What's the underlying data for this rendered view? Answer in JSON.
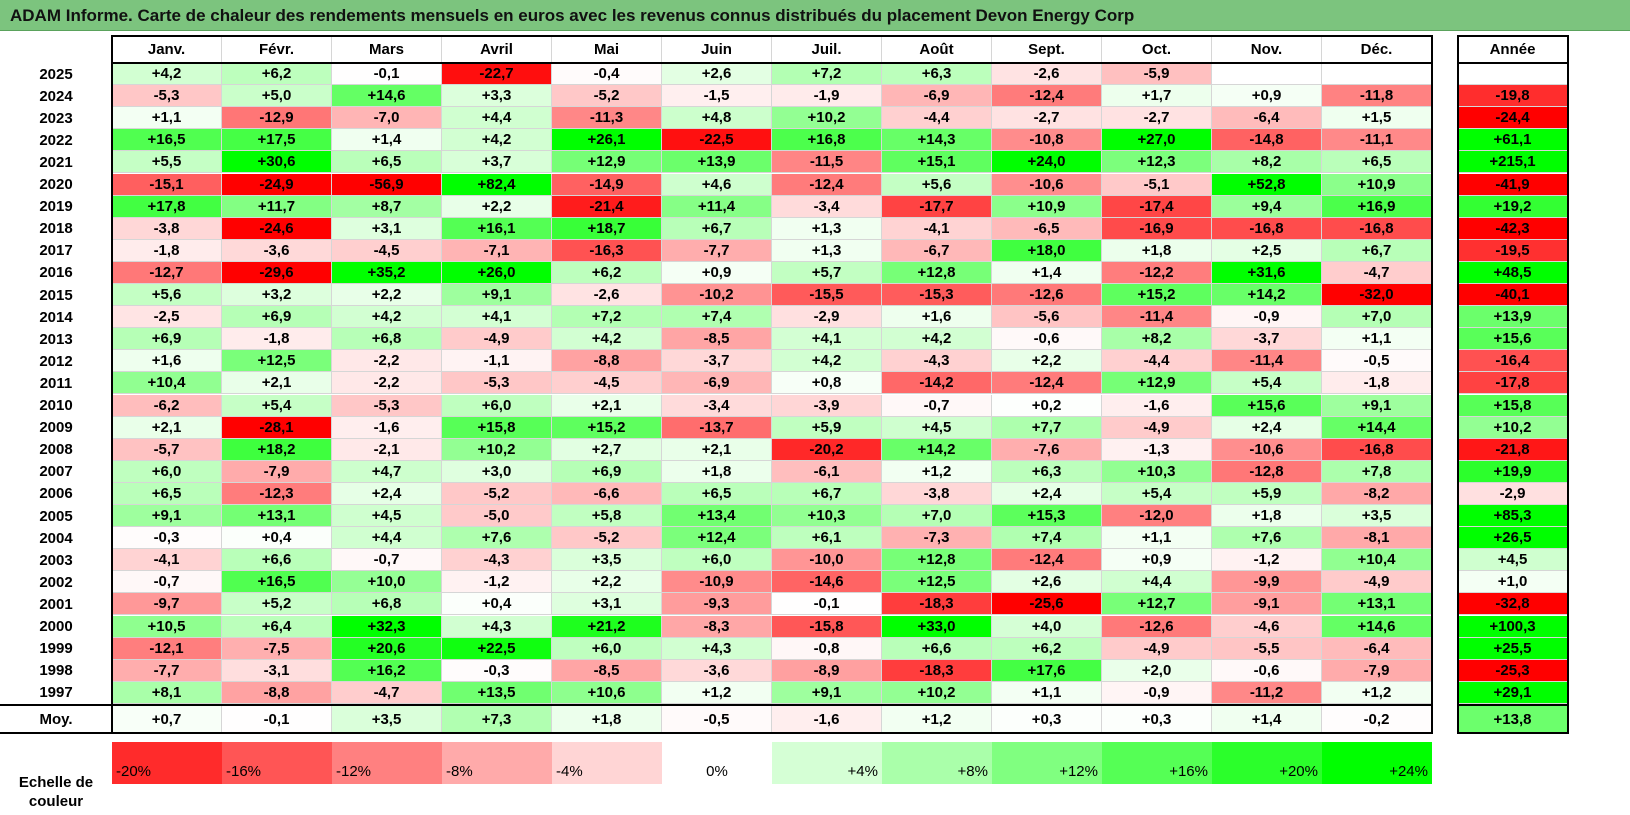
{
  "title": "ADAM Informe. Carte de chaleur des rendements mensuels en euros avec les revenus connus distribués du placement Devon Energy Corp",
  "chart_data": {
    "type": "heatmap",
    "title": "ADAM Informe. Carte de chaleur des rendements mensuels en euros avec les revenus connus distribués du placement Devon Energy Corp",
    "columns": [
      "Janv.",
      "Févr.",
      "Mars",
      "Avril",
      "Mai",
      "Juin",
      "Juil.",
      "Août",
      "Sept.",
      "Oct.",
      "Nov.",
      "Déc."
    ],
    "year_column": "Année",
    "rows": [
      {
        "year": "2025",
        "values": [
          4.2,
          6.2,
          -0.1,
          -22.7,
          -0.4,
          2.6,
          7.2,
          6.3,
          -2.6,
          -5.9,
          null,
          null
        ],
        "annual": null
      },
      {
        "year": "2024",
        "values": [
          -5.3,
          5.0,
          14.6,
          3.3,
          -5.2,
          -1.5,
          -1.9,
          -6.9,
          -12.4,
          1.7,
          0.9,
          -11.8
        ],
        "annual": -19.8
      },
      {
        "year": "2023",
        "values": [
          1.1,
          -12.9,
          -7.0,
          4.4,
          -11.3,
          4.8,
          10.2,
          -4.4,
          -2.7,
          -2.7,
          -6.4,
          1.5
        ],
        "annual": -24.4
      },
      {
        "year": "2022",
        "values": [
          16.5,
          17.5,
          1.4,
          4.2,
          26.1,
          -22.5,
          16.8,
          14.3,
          -10.8,
          27.0,
          -14.8,
          -11.1
        ],
        "annual": 61.1
      },
      {
        "year": "2021",
        "values": [
          5.5,
          30.6,
          6.5,
          3.7,
          12.9,
          13.9,
          -11.5,
          15.1,
          24.0,
          12.3,
          8.2,
          6.5
        ],
        "annual": 215.1
      },
      {
        "year": "2020",
        "values": [
          -15.1,
          -24.9,
          -56.9,
          82.4,
          -14.9,
          4.6,
          -12.4,
          5.6,
          -10.6,
          -5.1,
          52.8,
          10.9
        ],
        "annual": -41.9
      },
      {
        "year": "2019",
        "values": [
          17.8,
          11.7,
          8.7,
          2.2,
          -21.4,
          11.4,
          -3.4,
          -17.7,
          10.9,
          -17.4,
          9.4,
          16.9
        ],
        "annual": 19.2
      },
      {
        "year": "2018",
        "values": [
          -3.8,
          -24.6,
          3.1,
          16.1,
          18.7,
          6.7,
          1.3,
          -4.1,
          -6.5,
          -16.9,
          -16.8,
          -16.8
        ],
        "annual": -42.3
      },
      {
        "year": "2017",
        "values": [
          -1.8,
          -3.6,
          -4.5,
          -7.1,
          -16.3,
          -7.7,
          1.3,
          -6.7,
          18.0,
          1.8,
          2.5,
          6.7
        ],
        "annual": -19.5
      },
      {
        "year": "2016",
        "values": [
          -12.7,
          -29.6,
          35.2,
          26.0,
          6.2,
          0.9,
          5.7,
          12.8,
          1.4,
          -12.2,
          31.6,
          -4.7
        ],
        "annual": 48.5
      },
      {
        "year": "2015",
        "values": [
          5.6,
          3.2,
          2.2,
          9.1,
          -2.6,
          -10.2,
          -15.5,
          -15.3,
          -12.6,
          15.2,
          14.2,
          -32.0
        ],
        "annual": -40.1
      },
      {
        "year": "2014",
        "values": [
          -2.5,
          6.9,
          4.2,
          4.1,
          7.2,
          7.4,
          -2.9,
          1.6,
          -5.6,
          -11.4,
          -0.9,
          7.0
        ],
        "annual": 13.9
      },
      {
        "year": "2013",
        "values": [
          6.9,
          -1.8,
          6.8,
          -4.9,
          4.2,
          -8.5,
          4.1,
          4.2,
          -0.6,
          8.2,
          -3.7,
          1.1
        ],
        "annual": 15.6
      },
      {
        "year": "2012",
        "values": [
          1.6,
          12.5,
          -2.2,
          -1.1,
          -8.8,
          -3.7,
          4.2,
          -4.3,
          2.2,
          -4.4,
          -11.4,
          -0.5
        ],
        "annual": -16.4
      },
      {
        "year": "2011",
        "values": [
          10.4,
          2.1,
          -2.2,
          -5.3,
          -4.5,
          -6.9,
          0.8,
          -14.2,
          -12.4,
          12.9,
          5.4,
          -1.8
        ],
        "annual": -17.8
      },
      {
        "year": "2010",
        "values": [
          -6.2,
          5.4,
          -5.3,
          6.0,
          2.1,
          -3.4,
          -3.9,
          -0.7,
          0.2,
          -1.6,
          15.6,
          9.1
        ],
        "annual": 15.8
      },
      {
        "year": "2009",
        "values": [
          2.1,
          -28.1,
          -1.6,
          15.8,
          15.2,
          -13.7,
          5.9,
          4.5,
          7.7,
          -4.9,
          2.4,
          14.4
        ],
        "annual": 10.2
      },
      {
        "year": "2008",
        "values": [
          -5.7,
          18.2,
          -2.1,
          10.2,
          2.7,
          2.1,
          -20.2,
          14.2,
          -7.6,
          -1.3,
          -10.6,
          -16.8
        ],
        "annual": -21.8
      },
      {
        "year": "2007",
        "values": [
          6.0,
          -7.9,
          4.7,
          3.0,
          6.9,
          1.8,
          -6.1,
          1.2,
          6.3,
          10.3,
          -12.8,
          7.8
        ],
        "annual": 19.9
      },
      {
        "year": "2006",
        "values": [
          6.5,
          -12.3,
          2.4,
          -5.2,
          -6.6,
          6.5,
          6.7,
          -3.8,
          2.4,
          5.4,
          5.9,
          -8.2
        ],
        "annual": -2.9
      },
      {
        "year": "2005",
        "values": [
          9.1,
          13.1,
          4.5,
          -5.0,
          5.8,
          13.4,
          10.3,
          7.0,
          15.3,
          -12.0,
          1.8,
          3.5
        ],
        "annual": 85.3
      },
      {
        "year": "2004",
        "values": [
          -0.3,
          0.4,
          4.4,
          7.6,
          -5.2,
          12.4,
          6.1,
          -7.3,
          7.4,
          1.1,
          7.6,
          -8.1
        ],
        "annual": 26.5
      },
      {
        "year": "2003",
        "values": [
          -4.1,
          6.6,
          -0.7,
          -4.3,
          3.5,
          6.0,
          -10.0,
          12.8,
          -12.4,
          0.9,
          -1.2,
          10.4
        ],
        "annual": 4.5
      },
      {
        "year": "2002",
        "values": [
          -0.7,
          16.5,
          10.0,
          -1.2,
          2.2,
          -10.9,
          -14.6,
          12.5,
          2.6,
          4.4,
          -9.9,
          -4.9
        ],
        "annual": 1.0
      },
      {
        "year": "2001",
        "values": [
          -9.7,
          5.2,
          6.8,
          0.4,
          3.1,
          -9.3,
          -0.1,
          -18.3,
          -25.6,
          12.7,
          -9.1,
          13.1
        ],
        "annual": -32.8
      },
      {
        "year": "2000",
        "values": [
          10.5,
          6.4,
          32.3,
          4.3,
          21.2,
          -8.3,
          -15.8,
          33.0,
          4.0,
          -12.6,
          -4.6,
          14.6
        ],
        "annual": 100.3
      },
      {
        "year": "1999",
        "values": [
          -12.1,
          -7.5,
          20.6,
          22.5,
          6.0,
          4.3,
          -0.8,
          6.6,
          6.2,
          -4.9,
          -5.5,
          -6.4
        ],
        "annual": 25.5
      },
      {
        "year": "1998",
        "values": [
          -7.7,
          -3.1,
          16.2,
          -0.3,
          -8.5,
          -3.6,
          -8.9,
          -18.3,
          17.6,
          2.0,
          -0.6,
          -7.9
        ],
        "annual": -25.3
      },
      {
        "year": "1997",
        "values": [
          8.1,
          -8.8,
          -4.7,
          13.5,
          10.6,
          1.2,
          9.1,
          10.2,
          1.1,
          -0.9,
          -11.2,
          1.2
        ],
        "annual": 29.1
      }
    ],
    "average": {
      "label": "Moy.",
      "values": [
        0.7,
        -0.1,
        3.5,
        7.3,
        1.8,
        -0.5,
        -1.6,
        1.2,
        0.3,
        0.3,
        1.4,
        -0.2
      ],
      "annual": 13.8
    },
    "scale": {
      "label": "Echelle de couleur",
      "values": [
        -20,
        -16,
        -12,
        -8,
        -4,
        0,
        4,
        8,
        12,
        16,
        20,
        24
      ],
      "labels": [
        "-20%",
        "-16%",
        "-12%",
        "-8%",
        "-4%",
        "0%",
        "+4%",
        "+8%",
        "+12%",
        "+16%",
        "+20%",
        "+24%"
      ]
    },
    "colors": {
      "negative": "#ff0000",
      "neutral": "#ffffff",
      "positive": "#00ff00"
    }
  }
}
